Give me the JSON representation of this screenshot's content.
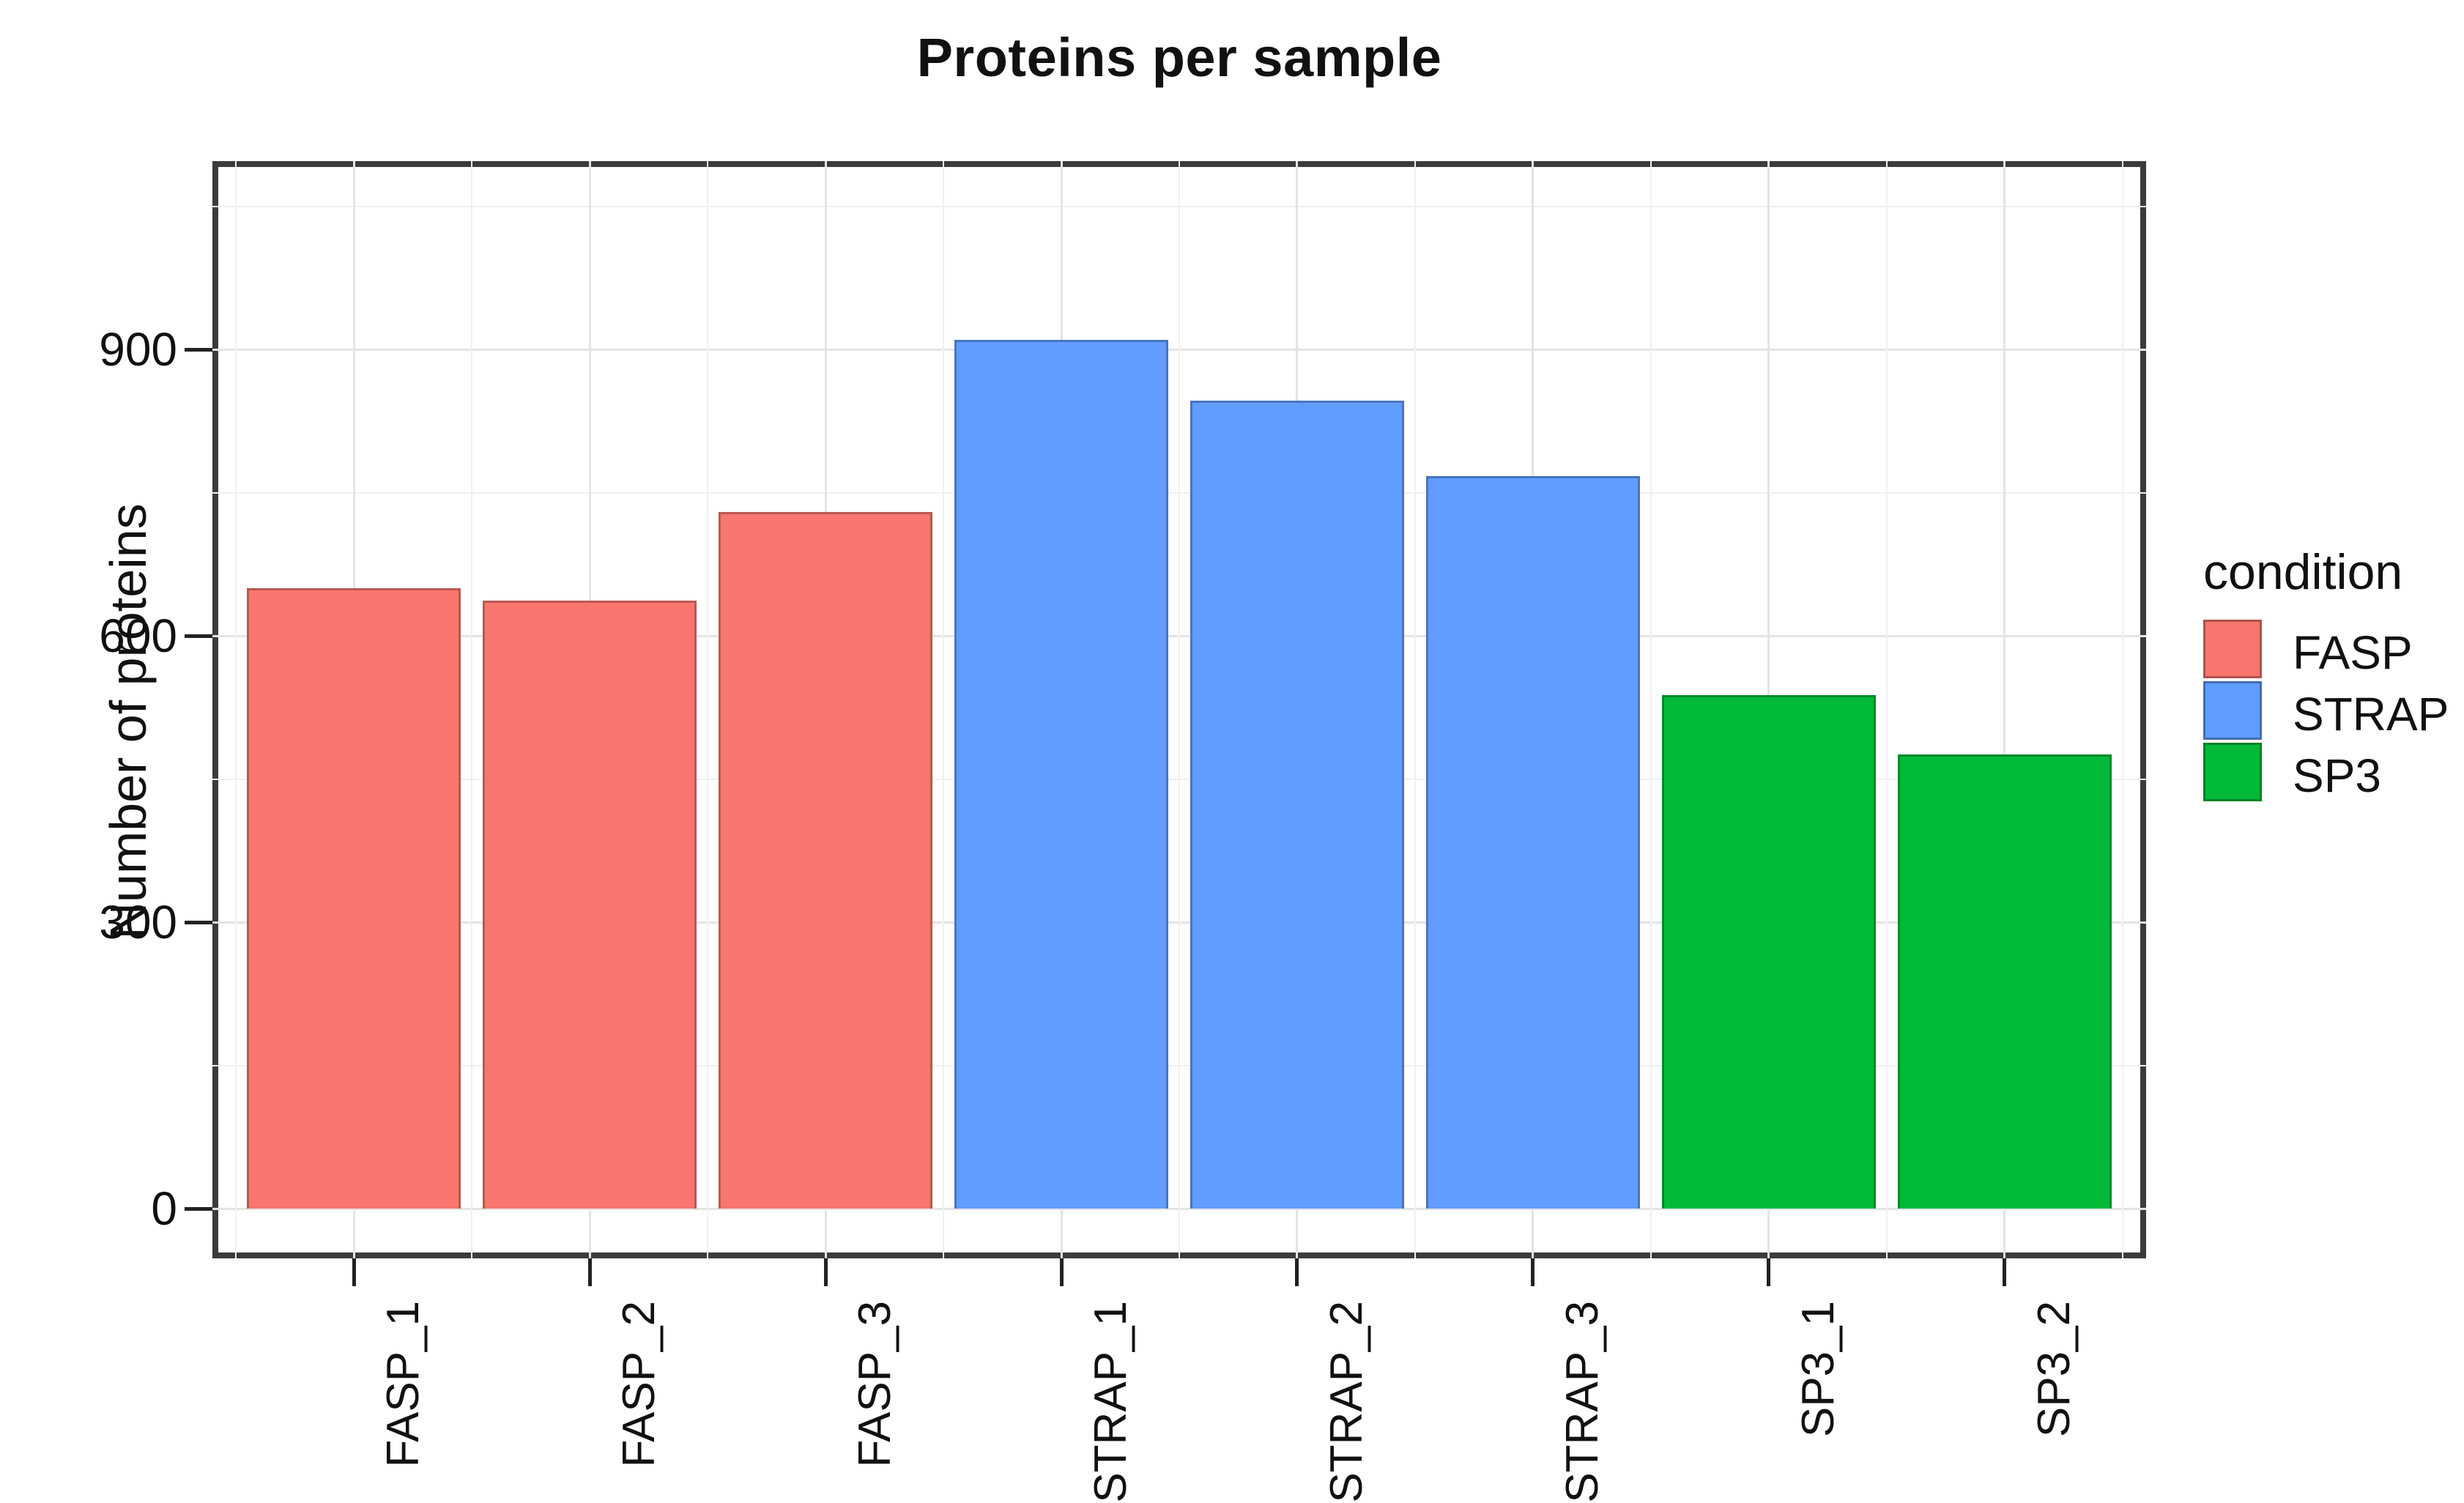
{
  "chart_data": {
    "type": "bar",
    "title": "Proteins per sample",
    "xlabel": "",
    "ylabel": "Number of proteins",
    "categories": [
      "FASP_1",
      "FASP_2",
      "FASP_3",
      "STRAP_1",
      "STRAP_2",
      "STRAP_3",
      "SP3_1",
      "SP3_2"
    ],
    "values": [
      650,
      637,
      730,
      910,
      846,
      767,
      538,
      476
    ],
    "conditions": [
      "FASP",
      "FASP",
      "FASP",
      "STRAP",
      "STRAP",
      "STRAP",
      "SP3",
      "SP3"
    ],
    "yticks": [
      0,
      300,
      600,
      900
    ],
    "ytick_labels": [
      "0",
      "300",
      "600",
      "900"
    ],
    "yminor_step": 150,
    "ylim": [
      0,
      1100
    ],
    "grid": "major+minor",
    "legend_position": "right"
  },
  "legend": {
    "title": "condition",
    "entries": [
      {
        "label": "FASP",
        "color": "#F8766D"
      },
      {
        "label": "STRAP",
        "color": "#619CFF"
      },
      {
        "label": "SP3",
        "color": "#00BA38"
      }
    ]
  }
}
